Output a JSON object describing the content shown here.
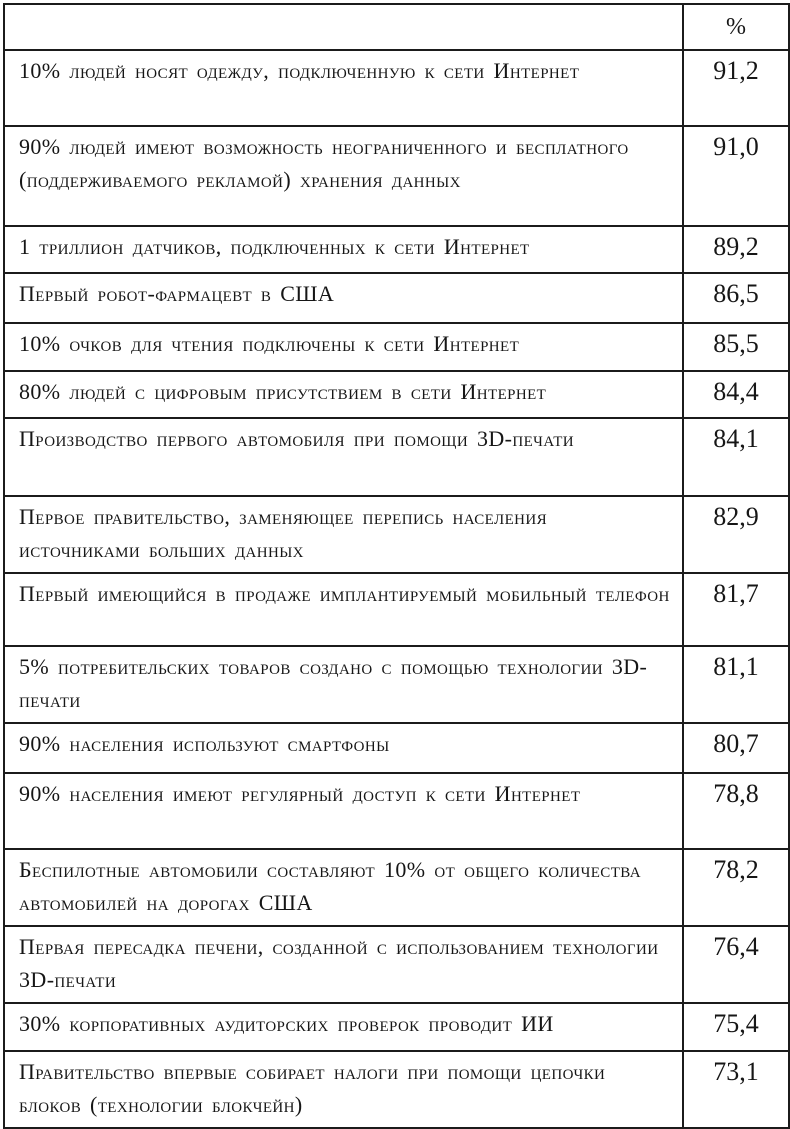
{
  "table": {
    "percent_header": "%",
    "rows": [
      {
        "label": "10% людей носят одежду, подключенную к сети Интернет",
        "value": "91,2"
      },
      {
        "label": "90% людей имеют возможность неограниченного и бесплатного (поддерживаемого рекламой) хранения данных",
        "value": "91,0"
      },
      {
        "label": "1 триллион датчиков, подключенных к сети Интернет",
        "value": "89,2"
      },
      {
        "label": "Первый робот-фармацевт в США",
        "value": "86,5"
      },
      {
        "label": "10% очков для чтения подключены к сети Интернет",
        "value": "85,5"
      },
      {
        "label": "80% людей с цифровым присутствием в сети Интернет",
        "value": "84,4"
      },
      {
        "label": "Производство первого автомобиля при помощи 3D-печати",
        "value": "84,1"
      },
      {
        "label": "Первое правительство, заменяющее перепись населения источниками больших данных",
        "value": "82,9"
      },
      {
        "label": "Первый имеющийся в продаже имплантируемый мобильный телефон",
        "value": "81,7"
      },
      {
        "label": "5% потребительских товаров создано с помощью технологии 3D-печати",
        "value": "81,1"
      },
      {
        "label": "90% населения используют смартфоны",
        "value": "80,7"
      },
      {
        "label": "90% населения имеют регулярный доступ к сети Интернет",
        "value": "78,8"
      },
      {
        "label": "Беспилотные автомобили составляют 10% от общего количества автомобилей на дорогах США",
        "value": "78,2"
      },
      {
        "label": "Первая пересадка печени, созданной с использованием технологии 3D-печати",
        "value": "76,4"
      },
      {
        "label": "30% корпоративных аудиторских проверок проводит ИИ",
        "value": "75,4"
      },
      {
        "label": "Правительство впервые собирает налоги при помощи цепочки блоков (технологии блокчейн)",
        "value": "73,1"
      }
    ]
  }
}
